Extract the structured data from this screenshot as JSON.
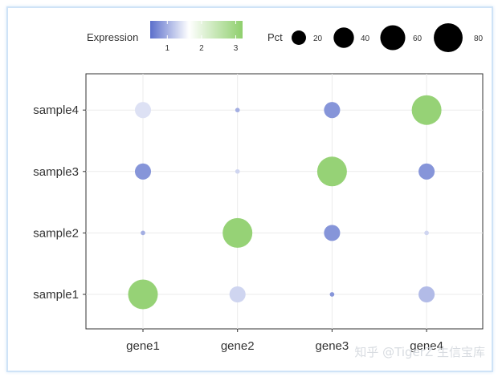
{
  "chart_data": {
    "type": "scatter",
    "title": "",
    "xlabel": "",
    "ylabel": "",
    "x_categories": [
      "gene1",
      "gene2",
      "gene3",
      "gene4"
    ],
    "y_categories": [
      "sample1",
      "sample2",
      "sample3",
      "sample4"
    ],
    "grid": true,
    "legend_position": "top",
    "color_legend": {
      "title": "Expression",
      "ticks": [
        "1",
        "2",
        "3"
      ],
      "range": [
        0.5,
        3.2
      ],
      "low_color": "#5b6fcb",
      "mid_color": "#ffffff",
      "high_color": "#8fcf6d"
    },
    "size_legend": {
      "title": "Pct",
      "ticks": [
        "20",
        "40",
        "60",
        "80"
      ],
      "values": [
        20,
        40,
        60,
        80
      ]
    },
    "points": [
      {
        "x": "gene1",
        "y": "sample4",
        "expression": 1.4,
        "pct": 25
      },
      {
        "x": "gene2",
        "y": "sample4",
        "expression": 1.0,
        "pct": 2
      },
      {
        "x": "gene3",
        "y": "sample4",
        "expression": 0.8,
        "pct": 25
      },
      {
        "x": "gene4",
        "y": "sample4",
        "expression": 3.1,
        "pct": 85
      },
      {
        "x": "gene1",
        "y": "sample3",
        "expression": 0.8,
        "pct": 25
      },
      {
        "x": "gene2",
        "y": "sample3",
        "expression": 1.3,
        "pct": 2
      },
      {
        "x": "gene3",
        "y": "sample3",
        "expression": 3.1,
        "pct": 85
      },
      {
        "x": "gene4",
        "y": "sample3",
        "expression": 0.8,
        "pct": 25
      },
      {
        "x": "gene1",
        "y": "sample2",
        "expression": 1.0,
        "pct": 2
      },
      {
        "x": "gene2",
        "y": "sample2",
        "expression": 3.1,
        "pct": 85
      },
      {
        "x": "gene3",
        "y": "sample2",
        "expression": 0.8,
        "pct": 25
      },
      {
        "x": "gene4",
        "y": "sample2",
        "expression": 1.3,
        "pct": 2
      },
      {
        "x": "gene1",
        "y": "sample1",
        "expression": 3.1,
        "pct": 85
      },
      {
        "x": "gene2",
        "y": "sample1",
        "expression": 1.3,
        "pct": 25
      },
      {
        "x": "gene3",
        "y": "sample1",
        "expression": 0.8,
        "pct": 2
      },
      {
        "x": "gene4",
        "y": "sample1",
        "expression": 1.1,
        "pct": 25
      }
    ]
  },
  "watermark": "知乎 @TigerZ 生信宝库"
}
